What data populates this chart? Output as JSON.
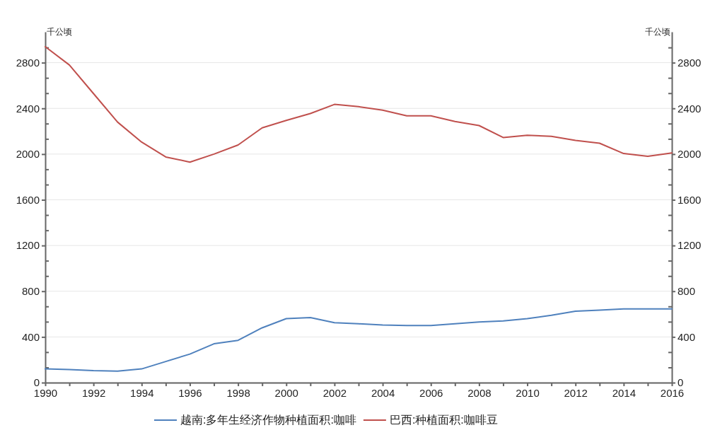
{
  "chart_data": {
    "type": "line",
    "ylabel": "千公顷",
    "y2label": "千公顷",
    "x": [
      1990,
      1991,
      1992,
      1993,
      1994,
      1995,
      1996,
      1997,
      1998,
      1999,
      2000,
      2001,
      2002,
      2003,
      2004,
      2005,
      2006,
      2007,
      2008,
      2009,
      2010,
      2011,
      2012,
      2013,
      2014,
      2015,
      2016
    ],
    "xlim": [
      1990,
      2016
    ],
    "xticks": [
      1990,
      {
        "value": 1991,
        "label": null
      },
      1992,
      {
        "value": 1993,
        "label": null
      },
      1994,
      {
        "value": 1995,
        "label": null
      },
      1996,
      {
        "value": 1997,
        "label": null
      },
      1998,
      {
        "value": 1999,
        "label": null
      },
      2000,
      {
        "value": 2001,
        "label": null
      },
      2002,
      {
        "value": 2003,
        "label": null
      },
      2004,
      {
        "value": 2005,
        "label": null
      },
      2006,
      {
        "value": 2007,
        "label": null
      },
      2008,
      {
        "value": 2009,
        "label": null
      },
      2010,
      {
        "value": 2011,
        "label": null
      },
      2012,
      {
        "value": 2013,
        "label": null
      },
      2014,
      {
        "value": 2015,
        "label": null
      },
      2016
    ],
    "ylim": [
      0,
      3070
    ],
    "yticks": [
      0,
      {
        "value": 133,
        "label": null
      },
      {
        "value": 267,
        "label": null
      },
      400,
      {
        "value": 533,
        "label": null
      },
      {
        "value": 667,
        "label": null
      },
      800,
      {
        "value": 933,
        "label": null
      },
      {
        "value": 1067,
        "label": null
      },
      1200,
      {
        "value": 1333,
        "label": null
      },
      {
        "value": 1467,
        "label": null
      },
      1600,
      {
        "value": 1733,
        "label": null
      },
      {
        "value": 1867,
        "label": null
      },
      2000,
      {
        "value": 2133,
        "label": null
      },
      {
        "value": 2267,
        "label": null
      },
      2400,
      {
        "value": 2533,
        "label": null
      },
      {
        "value": 2667,
        "label": null
      },
      2800,
      {
        "value": 2933,
        "label": null
      }
    ],
    "y2lim": [
      0,
      3070
    ],
    "y2ticks": [
      0,
      {
        "value": 133,
        "label": null
      },
      {
        "value": 267,
        "label": null
      },
      400,
      {
        "value": 533,
        "label": null
      },
      {
        "value": 667,
        "label": null
      },
      800,
      {
        "value": 933,
        "label": null
      },
      {
        "value": 1067,
        "label": null
      },
      1200,
      {
        "value": 1333,
        "label": null
      },
      {
        "value": 1467,
        "label": null
      },
      1600,
      {
        "value": 1733,
        "label": null
      },
      {
        "value": 1867,
        "label": null
      },
      2000,
      {
        "value": 2133,
        "label": null
      },
      {
        "value": 2267,
        "label": null
      },
      2400,
      {
        "value": 2533,
        "label": null
      },
      {
        "value": 2667,
        "label": null
      },
      2800,
      {
        "value": 2933,
        "label": null
      }
    ],
    "grid": "y",
    "legend": "bottom",
    "series": [
      {
        "name": "越南:多年生经济作物种植面积:咖啡",
        "color": "#4f81bd",
        "values": [
          120,
          115,
          105,
          100,
          120,
          185,
          250,
          340,
          370,
          480,
          560,
          570,
          525,
          515,
          505,
          500,
          500,
          515,
          530,
          540,
          560,
          590,
          625,
          635,
          645,
          645,
          645
        ]
      },
      {
        "name": "巴西:种植面积:咖啡豆",
        "color": "#c0504d",
        "values": [
          2940,
          2780,
          2530,
          2280,
          2105,
          1975,
          1930,
          2000,
          2080,
          2230,
          2295,
          2355,
          2435,
          2415,
          2385,
          2335,
          2335,
          2285,
          2250,
          2145,
          2165,
          2155,
          2120,
          2095,
          2005,
          1980,
          2010
        ]
      }
    ]
  }
}
